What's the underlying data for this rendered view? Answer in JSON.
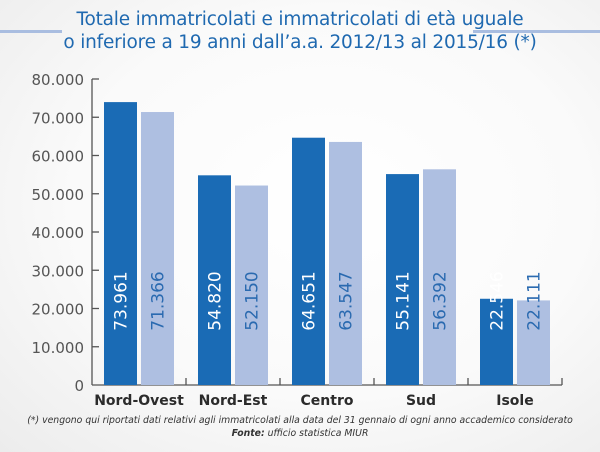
{
  "chart_data": {
    "type": "bar",
    "title_lines": [
      "Totale immatricolati e immatricolati di età uguale",
      "o inferiore a 19 anni dall’a.a. 2012/13 al 2015/16 (*)"
    ],
    "categories": [
      "Nord-Ovest",
      "Nord-Est",
      "Centro",
      "Sud",
      "Isole"
    ],
    "series": [
      {
        "name": "Totale immatricolati",
        "color": "#1a6bb5",
        "label_color": "#ffffff",
        "values": [
          73961,
          54820,
          64651,
          55141,
          22546
        ],
        "labels": [
          "73.961",
          "54.820",
          "64.651",
          "55.141",
          "22.546"
        ]
      },
      {
        "name": "Immatricolati di età ≤ 19 anni",
        "color": "#aebfe1",
        "label_color": "#2a6ab0",
        "values": [
          71366,
          52150,
          63547,
          56392,
          22111
        ],
        "labels": [
          "71.366",
          "52.150",
          "63.547",
          "56.392",
          "22.111"
        ]
      }
    ],
    "ylim": [
      0,
      80000
    ],
    "yticks": [
      0,
      10000,
      20000,
      30000,
      40000,
      50000,
      60000,
      70000,
      80000
    ],
    "ytick_labels": [
      "0",
      "10.000",
      "20.000",
      "30.000",
      "40.000",
      "50.000",
      "60.000",
      "70.000",
      "80.000"
    ],
    "xlabel": "",
    "ylabel": "",
    "grid": false,
    "legend": "none"
  },
  "footnote": {
    "note": "(*) vengono qui riportati dati relativi agli immatricolati alla data del 31 gennaio di ogni anno accademico considerato",
    "source_label": "Fonte:",
    "source_text": " ufficio statistica MIUR"
  }
}
